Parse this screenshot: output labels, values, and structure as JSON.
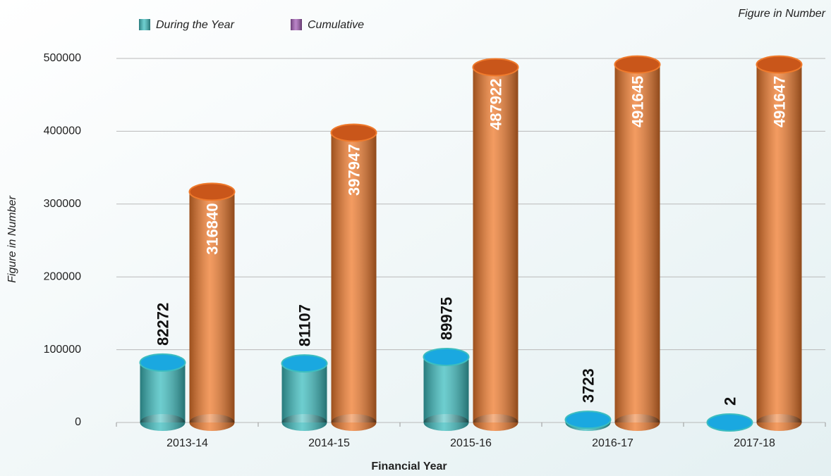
{
  "chart_data": {
    "type": "bar",
    "note": "Figure in Number",
    "y_label": "Figure in Number",
    "x_label": "Financial Year",
    "categories": [
      "2013-14",
      "2014-15",
      "2015-16",
      "2016-17",
      "2017-18"
    ],
    "series": [
      {
        "name": "During the Year",
        "color": "#3dbdbf",
        "cap_color": "#1aa8e0",
        "legend_color": "#3dbdbf",
        "label_color": "#111111",
        "values": [
          82272,
          81107,
          89975,
          3723,
          2
        ]
      },
      {
        "name": "Cumulative",
        "color": "#ef7a2c",
        "cap_color": "#c9561a",
        "legend_color": "#a35bb5",
        "label_color": "#ffffff",
        "values": [
          316840,
          397947,
          487922,
          491645,
          491647
        ]
      }
    ],
    "ylim": [
      0,
      500000
    ],
    "yticks": [
      0,
      100000,
      200000,
      300000,
      400000,
      500000
    ],
    "grid": true
  }
}
